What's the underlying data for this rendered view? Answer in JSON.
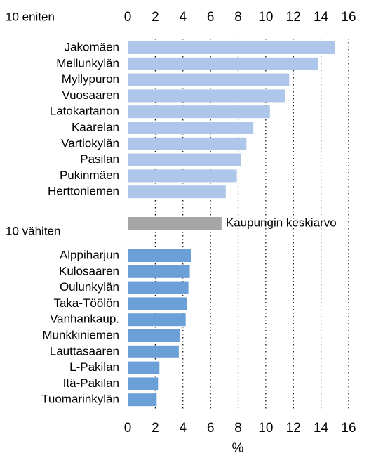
{
  "chart_data": {
    "type": "bar",
    "top_label": "10 eniten",
    "top": {
      "color": "#adc6ea",
      "categories": [
        "Jakomäen",
        "Mellunkylän",
        "Myllypuron",
        "Vuosaaren",
        "Latokartanon",
        "Kaarelan",
        "Vartiokylän",
        "Pasilan",
        "Pukinmäen",
        "Herttoniemen"
      ],
      "values": [
        15.0,
        13.8,
        11.7,
        11.4,
        10.3,
        9.1,
        8.6,
        8.2,
        7.9,
        7.1
      ]
    },
    "average": {
      "name": "Kaupungin keskiarvo",
      "value": 6.8,
      "color": "#a6a6a6"
    },
    "bottom_label": "10 vähiten",
    "bottom": {
      "color": "#6a9fd8",
      "categories": [
        "Alppiharjun",
        "Kulosaaren",
        "Oulunkylän",
        "Taka-Töölön",
        "Vanhankaup.",
        "Munkkiniemen",
        "Lauttasaaren",
        "L-Pakilan",
        "Itä-Pakilan",
        "Tuomarinkylän"
      ],
      "values": [
        4.6,
        4.5,
        4.4,
        4.3,
        4.2,
        3.8,
        3.7,
        2.3,
        2.2,
        2.1
      ]
    },
    "xlabel": "%",
    "xlim": [
      0,
      16
    ],
    "xticks": [
      0,
      2,
      4,
      6,
      8,
      10,
      12,
      14,
      16
    ],
    "grid": true
  }
}
